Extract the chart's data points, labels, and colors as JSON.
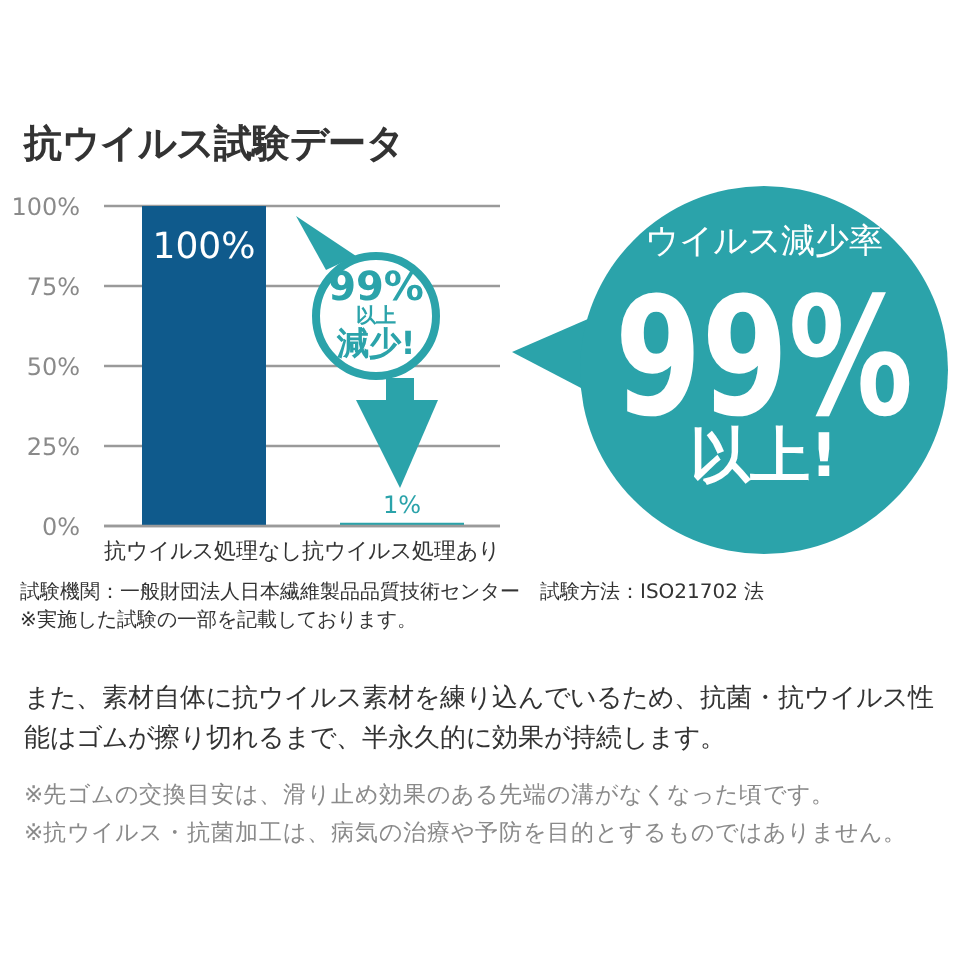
{
  "chart_data": {
    "type": "bar",
    "title": "抗ウイルス試験データ",
    "categories": [
      "抗ウイルス処理なし",
      "抗ウイルス処理あり"
    ],
    "values": [
      100,
      1
    ],
    "colors": [
      "#0f5a8c",
      "#2ba3aa"
    ],
    "value_labels": [
      "100%",
      "1%"
    ],
    "ylim": [
      0,
      100
    ],
    "yticks": [
      {
        "value": 0,
        "label": "0%"
      },
      {
        "value": 25,
        "label": "25%"
      },
      {
        "value": 50,
        "label": "50%"
      },
      {
        "value": 75,
        "label": "75%"
      },
      {
        "value": 100,
        "label": "100%"
      }
    ],
    "grid": "y",
    "annotations": [
      "99%",
      "以上",
      "減少!",
      "ウイルス減少率",
      "99%",
      "以上!",
      "試験機関：一般財団法人日本繊維製品品質技術センター　試験方法：ISO21702 法",
      "※実施した試験の一部を記載しております。",
      "また、素材自体に抗ウイルス素材を練り込んでいるため、抗菌・抗ウイルス性能はゴムが擦り切れるまで、半永久的に効果が持続します。",
      "※先ゴムの交換目安は、滑り止め効果のある先端の溝がなくなった頃です。",
      "※抗ウイルス・抗菌加工は、病気の治療や予防を目的とするものではありません。"
    ]
  }
}
